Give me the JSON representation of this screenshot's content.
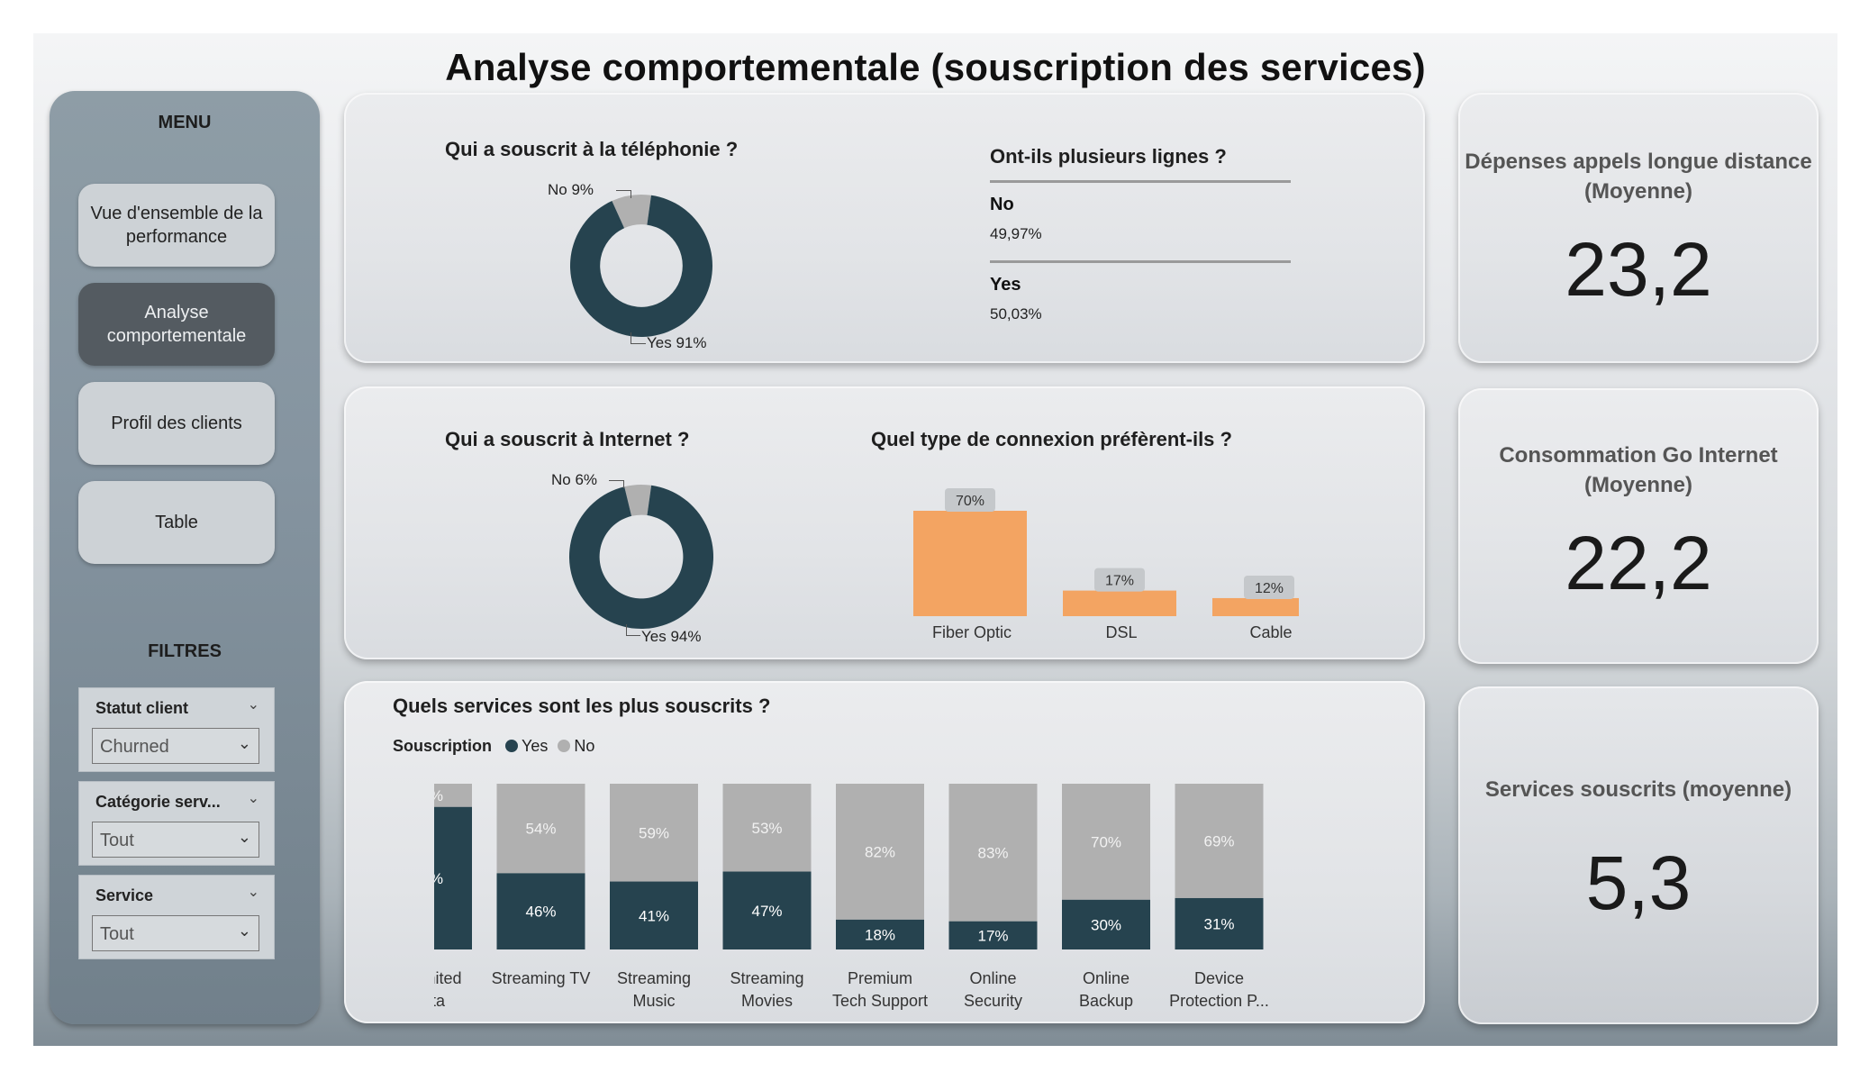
{
  "title": "Analyse comportementale (souscription des services)",
  "sidebar": {
    "menu_heading": "MENU",
    "nav": [
      {
        "label": "Vue d'ensemble de la performance"
      },
      {
        "label": "Analyse comportementale"
      },
      {
        "label": "Profil des clients"
      },
      {
        "label": "Table"
      }
    ],
    "filters_heading": "FILTRES",
    "filters": [
      {
        "label": "Statut client",
        "value": "Churned"
      },
      {
        "label": "Catégorie serv...",
        "value": "Tout"
      },
      {
        "label": "Service",
        "value": "Tout"
      }
    ]
  },
  "phone": {
    "title": "Qui a souscrit à la téléphonie ?",
    "no_label": "No 9%",
    "yes_label": "Yes 91%"
  },
  "multiple_lines": {
    "title": "Ont-ils plusieurs lignes ?",
    "items": [
      {
        "label": "No",
        "value": "49,97%"
      },
      {
        "label": "Yes",
        "value": "50,03%"
      }
    ]
  },
  "internet": {
    "title": "Qui a souscrit à Internet ?",
    "no_label": "No 6%",
    "yes_label": "Yes 94%"
  },
  "connection": {
    "title": "Quel type de connexion préfèrent-ils ?"
  },
  "services": {
    "title": "Quels services sont les plus souscrits ?",
    "legend_title": "Souscription",
    "legend_yes": "Yes",
    "legend_no": "No"
  },
  "kpis": [
    {
      "title": "Dépenses appels longue distance (Moyenne)",
      "value": "23,2"
    },
    {
      "title": "Consommation Go Internet (Moyenne)",
      "value": "22,2"
    },
    {
      "title": "Services souscrits (moyenne)",
      "value": "5,3"
    }
  ],
  "colors": {
    "yes": "#26434f",
    "no": "#b0b0b0",
    "connection_bar": "#f3a462",
    "active_nav": "#545b61"
  },
  "chart_data": [
    {
      "type": "pie",
      "title": "Qui a souscrit à la téléphonie ?",
      "categories": [
        "No",
        "Yes"
      ],
      "values": [
        9,
        91
      ]
    },
    {
      "type": "pie",
      "title": "Qui a souscrit à Internet ?",
      "categories": [
        "No",
        "Yes"
      ],
      "values": [
        6,
        94
      ]
    },
    {
      "type": "bar",
      "title": "Quel type de connexion préfèrent-ils ?",
      "categories": [
        "Fiber Optic",
        "DSL",
        "Cable"
      ],
      "values": [
        70,
        17,
        12
      ],
      "data_labels": [
        "70%",
        "17%",
        "12%"
      ]
    },
    {
      "type": "bar",
      "title": "Quels services sont les plus souscrits ?",
      "stacked": true,
      "percent": true,
      "legend_title": "Souscription",
      "categories": [
        "Unlimited Data",
        "Streaming TV",
        "Streaming Music",
        "Streaming Movies",
        "Premium Tech Support",
        "Online Security",
        "Online Backup",
        "Device Protection P..."
      ],
      "series": [
        {
          "name": "Yes",
          "values": [
            86,
            46,
            41,
            47,
            18,
            17,
            30,
            31
          ]
        },
        {
          "name": "No",
          "values": [
            14,
            54,
            59,
            53,
            82,
            83,
            70,
            69
          ]
        }
      ]
    }
  ]
}
